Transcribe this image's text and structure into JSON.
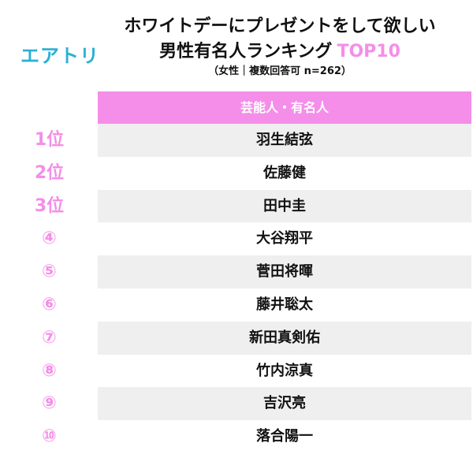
{
  "logo": {
    "text": "エアトリ",
    "color": "#2bb0d6"
  },
  "title": {
    "line1": "ホワイトデーにプレゼントをして欲しい",
    "line2_main": "男性有名人ランキング",
    "line2_accent": "TOP10",
    "subtitle": "（女性｜複数回答可 n=262）"
  },
  "colors": {
    "accent": "#f48ee8",
    "header_bg": "#f48ee8",
    "shaded_row": "#efefef"
  },
  "table": {
    "header": "芸能人・有名人",
    "rows": [
      {
        "rank": "1位",
        "name": "羽生結弦"
      },
      {
        "rank": "2位",
        "name": "佐藤健"
      },
      {
        "rank": "3位",
        "name": "田中圭"
      },
      {
        "rank": "④",
        "name": "大谷翔平"
      },
      {
        "rank": "⑤",
        "name": "菅田将暉"
      },
      {
        "rank": "⑥",
        "name": "藤井聡太"
      },
      {
        "rank": "⑦",
        "name": "新田真剣佑"
      },
      {
        "rank": "⑧",
        "name": "竹内涼真"
      },
      {
        "rank": "⑨",
        "name": "吉沢亮"
      },
      {
        "rank": "⑩",
        "name": "落合陽一"
      }
    ]
  }
}
